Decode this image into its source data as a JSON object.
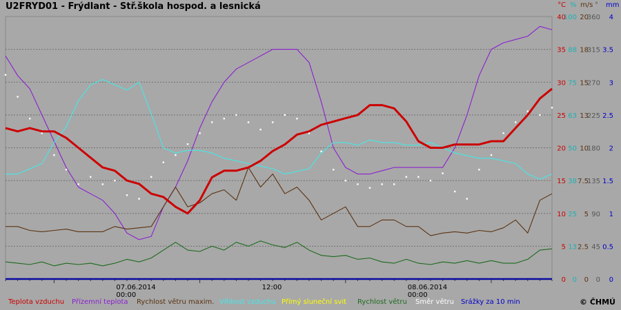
{
  "header": {
    "title": "U2FRYD01 - Frýdlant - Stř.škola hospod. a lesnická"
  },
  "credit": "© ČHMÚ",
  "colors": {
    "background": "#a8a8a8",
    "temperature": "#cc0000",
    "ground_temperature": "#8a1fd0",
    "wind_gust": "#5a3210",
    "humidity": "#45e8e8",
    "sunshine": "#ffff00",
    "wind_speed": "#1c6a1c",
    "wind_direction": "#ffffff",
    "precipitation": "#0a0aa0"
  },
  "chart_data": {
    "type": "line",
    "grid": true,
    "x_axis": {
      "labels": [
        {
          "date": "07.06.2014",
          "time": "00:00"
        },
        {
          "date": "",
          "time": "12:00"
        },
        {
          "date": "08.06.2014",
          "time": "00:00"
        }
      ],
      "hours_shown": 45
    },
    "right_axes": [
      {
        "unit": "°C",
        "color": "#cc0000",
        "ticks": [
          "40",
          "35",
          "30",
          "25",
          "20",
          "15",
          "10",
          "5",
          "0"
        ]
      },
      {
        "unit": "%",
        "color": "#20b0b0",
        "ticks": [
          "100",
          "88",
          "75",
          "63",
          "50",
          "38",
          "25",
          "13",
          "0"
        ]
      },
      {
        "unit": "m/s",
        "color": "#5a3210",
        "ticks": [
          "20",
          "18",
          "15",
          "13",
          "10",
          "7.5",
          "5",
          "2.5",
          "0"
        ]
      },
      {
        "unit": "°",
        "color": "#555555",
        "ticks": [
          "360",
          "315",
          "270",
          "225",
          "180",
          "135",
          "90",
          "45",
          "0"
        ]
      },
      {
        "unit": "mm",
        "color": "#0000cc",
        "ticks": [
          "4",
          "3.5",
          "3",
          "2.5",
          "2",
          "1.5",
          "1",
          "0.5",
          "0"
        ]
      }
    ],
    "legend": [
      {
        "label": "Teplota vzduchu",
        "color": "#cc0000"
      },
      {
        "label": "Přízemní teplota",
        "color": "#8a1fd0"
      },
      {
        "label": "Rychlost větru maxim.",
        "color": "#5a3210"
      },
      {
        "label": "Vlhkost vzduchu",
        "color": "#45e8e8"
      },
      {
        "label": "Přímý sluneční svit",
        "color": "#ffff00"
      },
      {
        "label": "Rychlost větru",
        "color": "#1c6a1c"
      },
      {
        "label": "Směr větru",
        "color": "#ffffff"
      },
      {
        "label": "Srážky za 10 min",
        "color": "#0000cc"
      }
    ],
    "series": [
      {
        "key": "temperature",
        "unit": "°C",
        "points": [
          [
            0,
            23
          ],
          [
            1,
            22.5
          ],
          [
            2,
            23
          ],
          [
            3,
            22.5
          ],
          [
            4,
            22.5
          ],
          [
            5,
            21.5
          ],
          [
            6,
            20
          ],
          [
            7,
            18.5
          ],
          [
            8,
            17
          ],
          [
            9,
            16.5
          ],
          [
            10,
            15
          ],
          [
            11,
            14.5
          ],
          [
            12,
            13
          ],
          [
            13,
            12.5
          ],
          [
            14,
            11
          ],
          [
            15,
            10
          ],
          [
            16,
            12
          ],
          [
            17,
            15.5
          ],
          [
            18,
            16.5
          ],
          [
            19,
            16.5
          ],
          [
            20,
            17
          ],
          [
            21,
            18
          ],
          [
            22,
            19.5
          ],
          [
            23,
            20.5
          ],
          [
            24,
            22
          ],
          [
            25,
            22.5
          ],
          [
            26,
            23.5
          ],
          [
            27,
            24
          ],
          [
            28,
            24.5
          ],
          [
            29,
            25
          ],
          [
            30,
            26.5
          ],
          [
            31,
            26.5
          ],
          [
            32,
            26
          ],
          [
            33,
            24
          ],
          [
            34,
            21
          ],
          [
            35,
            20
          ],
          [
            36,
            20
          ],
          [
            37,
            20.5
          ],
          [
            38,
            20.5
          ],
          [
            39,
            20.5
          ],
          [
            40,
            21
          ],
          [
            41,
            21
          ],
          [
            42,
            23
          ],
          [
            43,
            25
          ],
          [
            44,
            27.5
          ],
          [
            45,
            29
          ]
        ]
      },
      {
        "key": "ground_temperature",
        "unit": "°C",
        "points": [
          [
            0,
            34
          ],
          [
            1,
            31
          ],
          [
            2,
            29
          ],
          [
            3,
            25
          ],
          [
            4,
            21
          ],
          [
            5,
            17
          ],
          [
            6,
            14
          ],
          [
            7,
            13
          ],
          [
            8,
            12
          ],
          [
            9,
            10
          ],
          [
            10,
            7
          ],
          [
            11,
            6
          ],
          [
            12,
            6.5
          ],
          [
            13,
            11
          ],
          [
            14,
            14
          ],
          [
            15,
            18
          ],
          [
            16,
            23
          ],
          [
            17,
            27
          ],
          [
            18,
            30
          ],
          [
            19,
            32
          ],
          [
            20,
            33
          ],
          [
            21,
            34
          ],
          [
            22,
            35
          ],
          [
            23,
            35
          ],
          [
            24,
            35
          ],
          [
            25,
            33
          ],
          [
            26,
            27
          ],
          [
            27,
            20
          ],
          [
            28,
            17
          ],
          [
            29,
            16
          ],
          [
            30,
            16
          ],
          [
            31,
            16.5
          ],
          [
            32,
            17
          ],
          [
            33,
            17
          ],
          [
            34,
            17
          ],
          [
            35,
            17
          ],
          [
            36,
            17
          ],
          [
            37,
            20
          ],
          [
            38,
            25
          ],
          [
            39,
            31
          ],
          [
            40,
            35
          ],
          [
            41,
            36
          ],
          [
            42,
            36.5
          ],
          [
            43,
            37
          ],
          [
            44,
            38.5
          ],
          [
            45,
            38
          ]
        ]
      },
      {
        "key": "wind_gust",
        "unit": "m/s",
        "points": [
          [
            0,
            4
          ],
          [
            1,
            4
          ],
          [
            2,
            3.7
          ],
          [
            3,
            3.6
          ],
          [
            4,
            3.7
          ],
          [
            5,
            3.8
          ],
          [
            6,
            3.6
          ],
          [
            7,
            3.6
          ],
          [
            8,
            3.6
          ],
          [
            9,
            4
          ],
          [
            10,
            3.8
          ],
          [
            11,
            3.9
          ],
          [
            12,
            4
          ],
          [
            13,
            5.5
          ],
          [
            14,
            7
          ],
          [
            15,
            5.5
          ],
          [
            16,
            5.8
          ],
          [
            17,
            6.5
          ],
          [
            18,
            6.8
          ],
          [
            19,
            6
          ],
          [
            20,
            8.5
          ],
          [
            21,
            7
          ],
          [
            22,
            8
          ],
          [
            23,
            6.5
          ],
          [
            24,
            7
          ],
          [
            25,
            6
          ],
          [
            26,
            4.5
          ],
          [
            27,
            5
          ],
          [
            28,
            5.5
          ],
          [
            29,
            4
          ],
          [
            30,
            4
          ],
          [
            31,
            4.5
          ],
          [
            32,
            4.5
          ],
          [
            33,
            4
          ],
          [
            34,
            4
          ],
          [
            35,
            3.3
          ],
          [
            36,
            3.5
          ],
          [
            37,
            3.6
          ],
          [
            38,
            3.5
          ],
          [
            39,
            3.7
          ],
          [
            40,
            3.6
          ],
          [
            41,
            3.9
          ],
          [
            42,
            4.5
          ],
          [
            43,
            3.5
          ],
          [
            44,
            6
          ],
          [
            45,
            6.5
          ]
        ]
      },
      {
        "key": "humidity",
        "unit": "%",
        "points": [
          [
            0,
            40
          ],
          [
            1,
            40
          ],
          [
            2,
            42
          ],
          [
            3,
            44
          ],
          [
            4,
            52
          ],
          [
            5,
            58
          ],
          [
            6,
            68
          ],
          [
            7,
            74
          ],
          [
            8,
            76
          ],
          [
            9,
            74
          ],
          [
            10,
            72
          ],
          [
            11,
            75
          ],
          [
            12,
            63
          ],
          [
            13,
            50
          ],
          [
            14,
            48
          ],
          [
            15,
            49
          ],
          [
            16,
            49
          ],
          [
            17,
            48
          ],
          [
            18,
            46
          ],
          [
            19,
            45
          ],
          [
            20,
            44
          ],
          [
            21,
            43
          ],
          [
            22,
            42
          ],
          [
            23,
            40
          ],
          [
            24,
            41
          ],
          [
            25,
            42
          ],
          [
            26,
            48
          ],
          [
            27,
            52
          ],
          [
            28,
            52
          ],
          [
            29,
            51
          ],
          [
            30,
            53
          ],
          [
            31,
            52
          ],
          [
            32,
            52
          ],
          [
            33,
            51
          ],
          [
            34,
            51
          ],
          [
            35,
            52
          ],
          [
            36,
            50
          ],
          [
            37,
            48
          ],
          [
            38,
            47
          ],
          [
            39,
            46
          ],
          [
            40,
            46
          ],
          [
            41,
            45
          ],
          [
            42,
            44
          ],
          [
            43,
            40
          ],
          [
            44,
            38
          ],
          [
            45,
            40
          ]
        ]
      },
      {
        "key": "wind_speed",
        "unit": "m/s",
        "points": [
          [
            0,
            1.3
          ],
          [
            1,
            1.2
          ],
          [
            2,
            1.1
          ],
          [
            3,
            1.3
          ],
          [
            4,
            1
          ],
          [
            5,
            1.2
          ],
          [
            6,
            1.1
          ],
          [
            7,
            1.2
          ],
          [
            8,
            1
          ],
          [
            9,
            1.2
          ],
          [
            10,
            1.5
          ],
          [
            11,
            1.3
          ],
          [
            12,
            1.6
          ],
          [
            13,
            2.2
          ],
          [
            14,
            2.8
          ],
          [
            15,
            2.2
          ],
          [
            16,
            2.1
          ],
          [
            17,
            2.5
          ],
          [
            18,
            2.2
          ],
          [
            19,
            2.8
          ],
          [
            20,
            2.5
          ],
          [
            21,
            2.9
          ],
          [
            22,
            2.6
          ],
          [
            23,
            2.4
          ],
          [
            24,
            2.8
          ],
          [
            25,
            2.2
          ],
          [
            26,
            1.8
          ],
          [
            27,
            1.7
          ],
          [
            28,
            1.8
          ],
          [
            29,
            1.5
          ],
          [
            30,
            1.6
          ],
          [
            31,
            1.3
          ],
          [
            32,
            1.2
          ],
          [
            33,
            1.5
          ],
          [
            34,
            1.2
          ],
          [
            35,
            1.1
          ],
          [
            36,
            1.3
          ],
          [
            37,
            1.2
          ],
          [
            38,
            1.4
          ],
          [
            39,
            1.2
          ],
          [
            40,
            1.4
          ],
          [
            41,
            1.2
          ],
          [
            42,
            1.2
          ],
          [
            43,
            1.5
          ],
          [
            44,
            2.2
          ],
          [
            45,
            2.3
          ]
        ]
      },
      {
        "key": "wind_direction",
        "unit": "°",
        "style": "dots",
        "points": [
          [
            0,
            280
          ],
          [
            1,
            250
          ],
          [
            2,
            220
          ],
          [
            3,
            200
          ],
          [
            4,
            170
          ],
          [
            5,
            150
          ],
          [
            6,
            130
          ],
          [
            7,
            140
          ],
          [
            8,
            130
          ],
          [
            9,
            135
          ],
          [
            10,
            115
          ],
          [
            11,
            110
          ],
          [
            12,
            140
          ],
          [
            13,
            160
          ],
          [
            14,
            170
          ],
          [
            15,
            185
          ],
          [
            16,
            200
          ],
          [
            17,
            215
          ],
          [
            18,
            220
          ],
          [
            19,
            225
          ],
          [
            20,
            215
          ],
          [
            21,
            205
          ],
          [
            22,
            215
          ],
          [
            23,
            225
          ],
          [
            24,
            220
          ],
          [
            25,
            200
          ],
          [
            26,
            175
          ],
          [
            27,
            150
          ],
          [
            28,
            135
          ],
          [
            29,
            130
          ],
          [
            30,
            125
          ],
          [
            31,
            130
          ],
          [
            32,
            130
          ],
          [
            33,
            140
          ],
          [
            34,
            140
          ],
          [
            35,
            135
          ],
          [
            36,
            145
          ],
          [
            37,
            120
          ],
          [
            38,
            110
          ],
          [
            39,
            150
          ],
          [
            40,
            170
          ],
          [
            41,
            200
          ],
          [
            42,
            215
          ],
          [
            43,
            230
          ],
          [
            44,
            225
          ],
          [
            45,
            235
          ]
        ]
      }
    ]
  }
}
